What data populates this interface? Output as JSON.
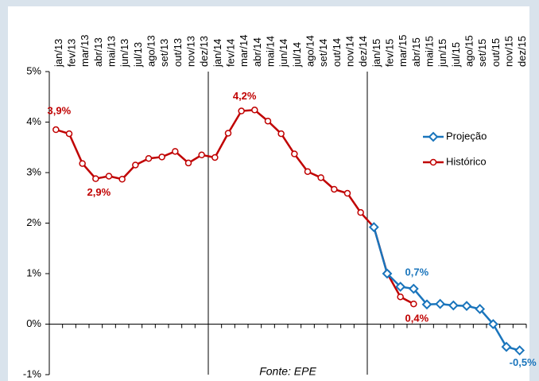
{
  "chart_data": {
    "type": "line",
    "categories": [
      "jan/13",
      "fev/13",
      "mar/13",
      "abr/13",
      "mai/13",
      "jun/13",
      "jul/13",
      "ago/13",
      "set/13",
      "out/13",
      "nov/13",
      "dez/13",
      "jan/14",
      "fev/14",
      "mar/14",
      "abr/14",
      "mai/14",
      "jun/14",
      "jul/14",
      "ago/14",
      "set/14",
      "out/14",
      "nov/14",
      "dez/14",
      "jan/15",
      "fev/15",
      "mar/15",
      "abr/15",
      "mai/15",
      "jun/15",
      "jul/15",
      "ago/15",
      "set/15",
      "out/15",
      "nov/15",
      "dez/15"
    ],
    "series": [
      {
        "name": "Projeção",
        "color": "#1a75bc",
        "values": [
          null,
          null,
          null,
          null,
          null,
          null,
          null,
          null,
          null,
          null,
          null,
          null,
          null,
          null,
          null,
          null,
          null,
          null,
          null,
          null,
          null,
          null,
          null,
          null,
          1.92,
          1.0,
          0.74,
          0.7,
          0.39,
          0.4,
          0.37,
          0.36,
          0.3,
          0.0,
          -0.45,
          -0.52
        ],
        "value_labels": [
          null,
          null,
          null,
          null,
          null,
          null,
          null,
          null,
          null,
          null,
          null,
          null,
          null,
          null,
          null,
          null,
          null,
          null,
          null,
          null,
          null,
          null,
          null,
          null,
          null,
          null,
          null,
          "0,7%",
          null,
          null,
          null,
          null,
          null,
          null,
          null,
          "-0,5%"
        ]
      },
      {
        "name": "Histórico",
        "color": "#c00000",
        "values": [
          3.85,
          3.77,
          3.18,
          2.88,
          2.93,
          2.87,
          3.15,
          3.28,
          3.31,
          3.42,
          3.19,
          3.35,
          3.3,
          3.78,
          4.22,
          4.24,
          4.02,
          3.77,
          3.37,
          3.02,
          2.9,
          2.67,
          2.59,
          2.21,
          1.92,
          1.01,
          0.54,
          0.4,
          null,
          null,
          null,
          null,
          null,
          null,
          null,
          null
        ],
        "value_labels": [
          "3,9%",
          null,
          null,
          "2,9%",
          null,
          null,
          null,
          null,
          null,
          null,
          null,
          null,
          null,
          null,
          "4,2%",
          null,
          null,
          null,
          null,
          null,
          null,
          null,
          null,
          null,
          null,
          null,
          null,
          "0,4%",
          null,
          null,
          null,
          null,
          null,
          null,
          null,
          null
        ]
      }
    ],
    "ylim": [
      -1,
      5
    ],
    "yticks": [
      {
        "value": -1,
        "label": "-1%"
      },
      {
        "value": 0,
        "label": "0%"
      },
      {
        "value": 1,
        "label": "1%"
      },
      {
        "value": 2,
        "label": "2%"
      },
      {
        "value": 3,
        "label": "3%"
      },
      {
        "value": 4,
        "label": "4%"
      },
      {
        "value": 5,
        "label": "5%"
      }
    ],
    "legend": "right",
    "source": "Fonte: EPE"
  }
}
